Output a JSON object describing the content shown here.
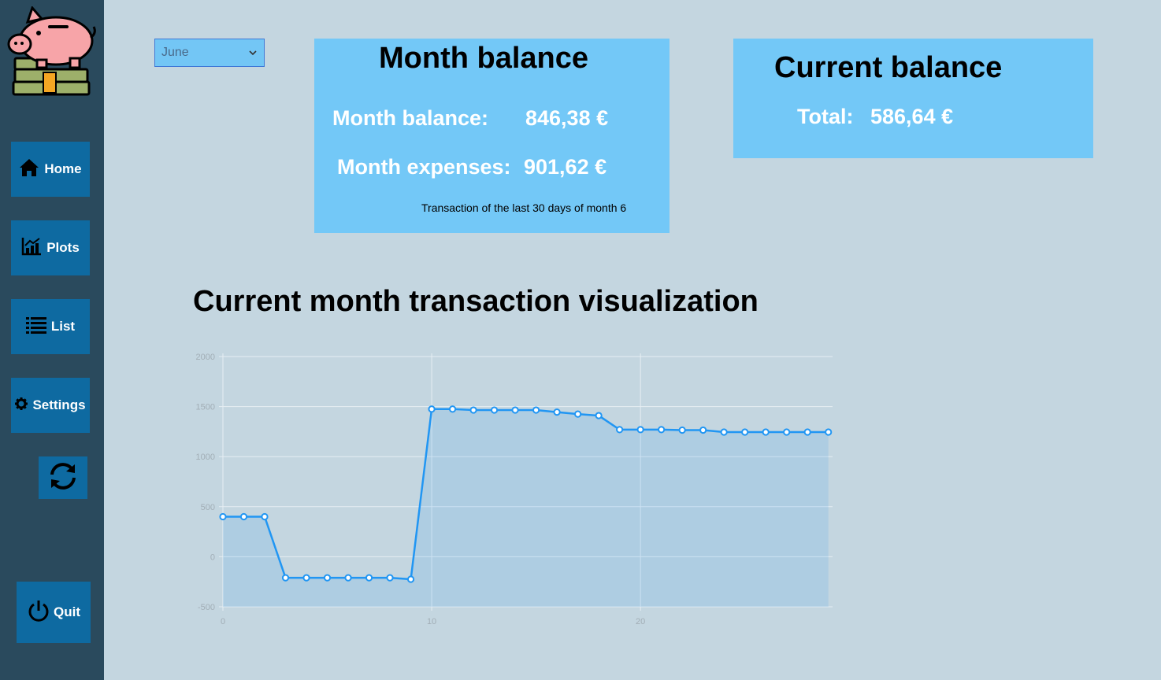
{
  "sidebar": {
    "items": [
      {
        "label": "Home",
        "icon": "home-icon"
      },
      {
        "label": "Plots",
        "icon": "chart-icon"
      },
      {
        "label": "List",
        "icon": "list-icon"
      },
      {
        "label": "Settings",
        "icon": "gear-icon"
      }
    ],
    "refresh_icon": "refresh-icon",
    "quit_label": "Quit",
    "quit_icon": "power-icon"
  },
  "month_select": {
    "value": "June"
  },
  "month_card": {
    "title": "Month balance",
    "balance_label": "Month balance:",
    "balance_value": "846,38 €",
    "expenses_label": "Month expenses:",
    "expenses_value": "901,62 €",
    "note": "Transaction of the last 30 days of month 6"
  },
  "current_card": {
    "title": "Current balance",
    "total_label": "Total:",
    "total_value": "586,64 €"
  },
  "section_title": "Current month transaction visualization",
  "colors": {
    "sidebar": "#2a4a5d",
    "button": "#0e6aa1",
    "card": "#73c8f7",
    "background": "#c4d6e0",
    "line": "#2196f3"
  },
  "chart_data": {
    "type": "area",
    "x": [
      0,
      1,
      2,
      3,
      4,
      5,
      6,
      7,
      8,
      9,
      10,
      11,
      12,
      13,
      14,
      15,
      16,
      17,
      18,
      19,
      20,
      21,
      22,
      23,
      24,
      25,
      26,
      27,
      28,
      29
    ],
    "series": [
      {
        "values": [
          400,
          400,
          400,
          -210,
          -210,
          -210,
          -210,
          -210,
          -210,
          -225,
          1475,
          1475,
          1465,
          1465,
          1465,
          1465,
          1445,
          1425,
          1410,
          1270,
          1270,
          1270,
          1265,
          1265,
          1245,
          1245,
          1245,
          1245,
          1245,
          1245
        ]
      }
    ],
    "x_ticks": [
      0,
      10,
      20
    ],
    "y_ticks": [
      -500,
      0,
      500,
      1000,
      1500,
      2000
    ],
    "xlim": [
      0,
      29.2
    ],
    "ylim": [
      -500,
      2000
    ],
    "grid": true
  }
}
